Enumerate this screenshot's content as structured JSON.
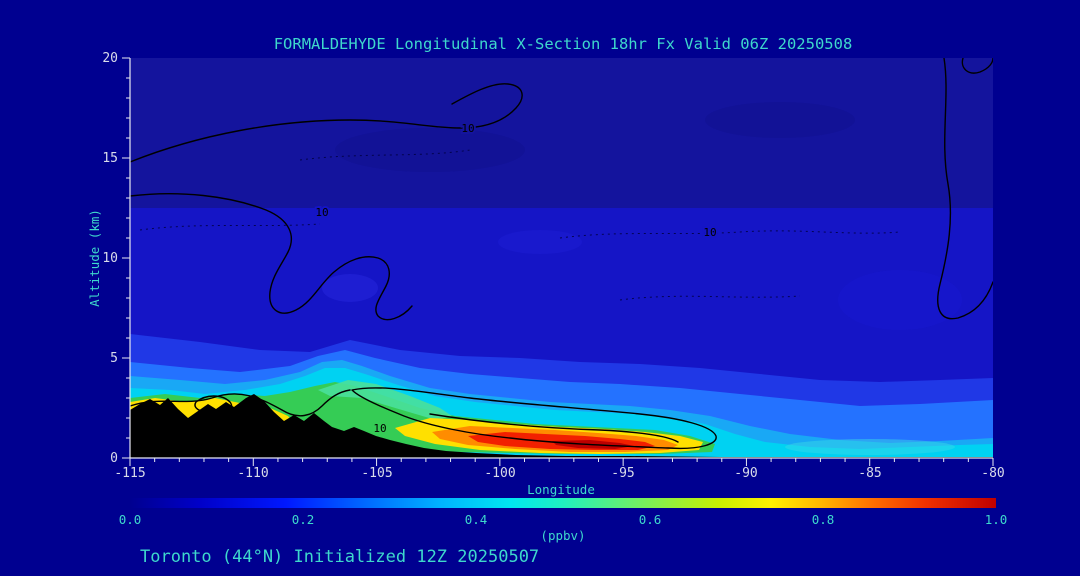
{
  "colors": {
    "background": "#000090",
    "accent_text": "#3ed8cc",
    "tick_text": "#d9dcea",
    "contour": "#000000",
    "terrain": "#000000",
    "scale_colors": [
      "#000090",
      "#0018ff",
      "#0070ff",
      "#00b4ff",
      "#00e8f0",
      "#58f080",
      "#c8f000",
      "#fff000",
      "#ffb400",
      "#ff6c00",
      "#f03000",
      "#c00000"
    ]
  },
  "chart_data": {
    "type": "heatmap",
    "title": "FORMALDEHYDE Longitudinal X-Section 18hr  Fx Valid 06Z 20250508",
    "caption": "Toronto (44°N) Initialized 12Z 20250507",
    "xlabel": "Longitude",
    "ylabel": "Altitude (km)",
    "xlim": [
      -115,
      -80
    ],
    "ylim": [
      0,
      20
    ],
    "axes": {
      "x": {
        "major": 5,
        "minor": 1
      },
      "y": {
        "major": 5,
        "minor": 1
      },
      "grid": false
    },
    "x_tick_labels": [
      "-115",
      "-110",
      "-105",
      "-100",
      "-95",
      "-90",
      "-85",
      "-80"
    ],
    "y_tick_labels": [
      "0",
      "5",
      "10",
      "15",
      "20"
    ],
    "colorbar": {
      "label": "(ppbv)",
      "min": 0.0,
      "max": 1.0,
      "tick_labels": [
        "0.0",
        "0.2",
        "0.4",
        "0.6",
        "0.8",
        "1.0"
      ],
      "position": "bottom"
    },
    "contour_label": "10",
    "field_grid": {
      "units": "ppbv",
      "longitudes": [
        -115,
        -110,
        -105,
        -100,
        -95,
        -90,
        -85,
        -80
      ],
      "altitudes_km": [
        0.5,
        2,
        4,
        8,
        12,
        16
      ],
      "ppbv": [
        [
          null,
          0.45,
          0.5,
          0.8,
          0.95,
          0.4,
          0.25,
          0.3
        ],
        [
          0.55,
          0.5,
          0.45,
          0.55,
          0.6,
          0.3,
          0.2,
          0.22
        ],
        [
          0.3,
          0.3,
          0.35,
          0.3,
          0.28,
          0.22,
          0.18,
          0.2
        ],
        [
          0.15,
          0.15,
          0.15,
          0.15,
          0.15,
          0.14,
          0.12,
          0.12
        ],
        [
          0.12,
          0.12,
          0.12,
          0.12,
          0.12,
          0.11,
          0.1,
          0.1
        ],
        [
          0.08,
          0.08,
          0.08,
          0.08,
          0.08,
          0.08,
          0.08,
          0.08
        ]
      ]
    },
    "terrain_profile": {
      "longitudes": [
        -115,
        -113,
        -111,
        -109,
        -107,
        -106,
        -105,
        -103,
        -101,
        -99,
        -97,
        -95,
        -90,
        -85,
        -80
      ],
      "surface_km": [
        2.3,
        2.9,
        2.0,
        2.6,
        1.4,
        1.6,
        1.2,
        0.9,
        0.5,
        0.3,
        0.2,
        0.1,
        0.1,
        0.1,
        0.1
      ]
    },
    "legend_position": "none"
  }
}
